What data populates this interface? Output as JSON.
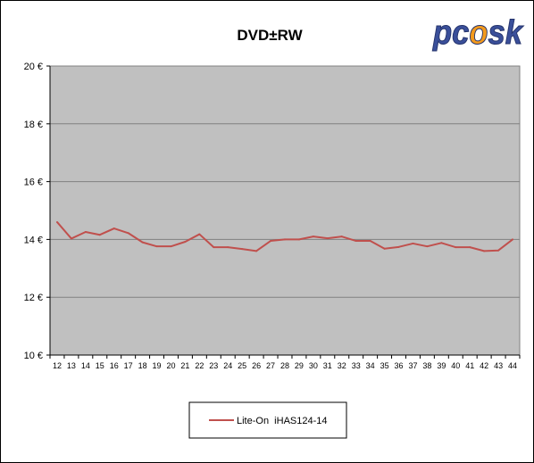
{
  "colors": {
    "plot_background": "#c0c0c0",
    "gridline": "#808080",
    "series_line": "#c0504d",
    "logo_blue": "#3a4f9a",
    "logo_flame": "#f39a1d"
  },
  "logo": {
    "text": "pcsk"
  },
  "chart_data": {
    "type": "line",
    "title": "DVD±RW",
    "xlabel": "",
    "ylabel": "",
    "x": [
      12,
      13,
      14,
      15,
      16,
      17,
      18,
      19,
      20,
      21,
      22,
      23,
      24,
      25,
      26,
      27,
      28,
      29,
      30,
      31,
      32,
      33,
      34,
      35,
      36,
      37,
      38,
      39,
      40,
      41,
      42,
      43,
      44
    ],
    "ylim": [
      10,
      20
    ],
    "y_ticks": [
      10,
      12,
      14,
      16,
      18,
      20
    ],
    "y_tick_labels": [
      "10 €",
      "12 €",
      "14 €",
      "16 €",
      "18 €",
      "20 €"
    ],
    "grid": true,
    "legend_position": "bottom-center",
    "series": [
      {
        "name": "Lite-On  iHAS124-14",
        "values": [
          14.6,
          14.03,
          14.26,
          14.16,
          14.38,
          14.22,
          13.9,
          13.76,
          13.76,
          13.92,
          14.18,
          13.73,
          13.73,
          13.67,
          13.6,
          13.95,
          14.0,
          14.0,
          14.1,
          14.04,
          14.1,
          13.95,
          13.95,
          13.68,
          13.74,
          13.86,
          13.76,
          13.88,
          13.73,
          13.73,
          13.6,
          13.62,
          14.0
        ]
      }
    ]
  }
}
